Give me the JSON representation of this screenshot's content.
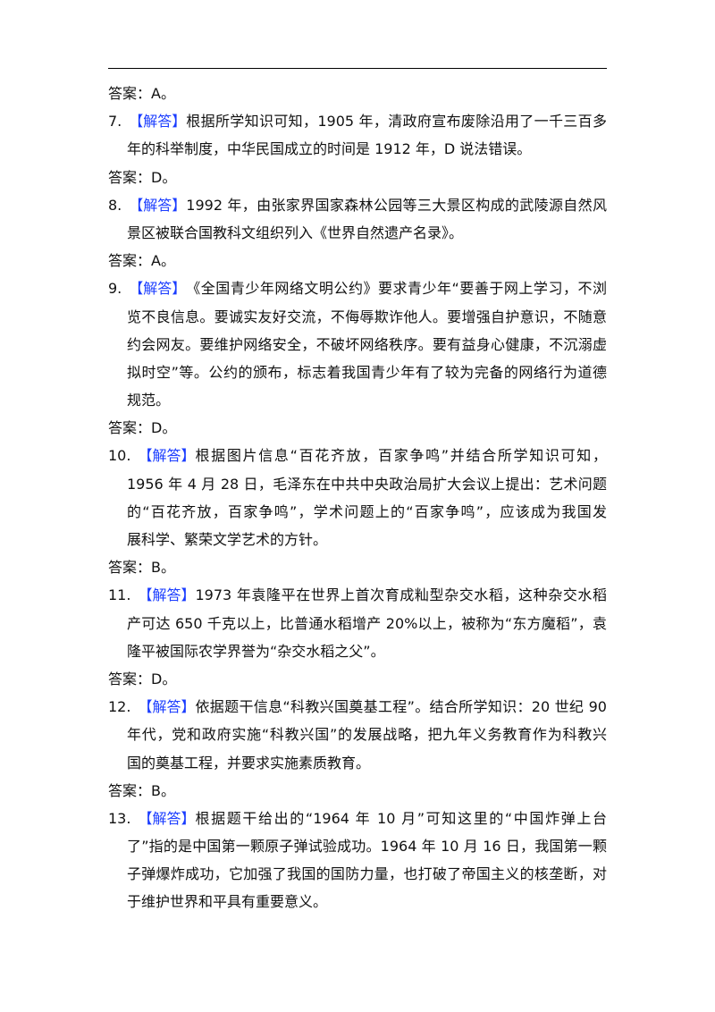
{
  "doc": {
    "first_answer": "答案：A。",
    "solution_label": "【解答】",
    "items": [
      {
        "num": "7.",
        "lines": [
          "根据所学知识可知，1905 年，清政府宣布废除沿用了一千三百多",
          "年的科举制度，中华民国成立的时间是 1912 年，D 说法错误。"
        ],
        "answer": "答案：D。"
      },
      {
        "num": "8.",
        "lines": [
          "1992 年，由张家界国家森林公园等三大景区构成的武陵源自然风",
          "景区被联合国教科文组织列入《世界自然遗产名录》。"
        ],
        "answer": "答案：A。"
      },
      {
        "num": "9.",
        "lines": [
          "《全国青少年网络文明公约》要求青少年“要善于网上学习，不浏",
          "览不良信息。要诚实友好交流，不侮辱欺诈他人。要增强自护意识，不随意",
          "约会网友。要维护网络安全，不破坏网络秩序。要有益身心健康，不沉溺虚",
          "拟时空”等。公约的颁布，标志着我国青少年有了较为完备的网络行为道德",
          "规范。"
        ],
        "answer": "答案：D。"
      },
      {
        "num": "10.",
        "lines": [
          "根据图片信息“百花齐放，百家争鸣”并结合所学知识可知，",
          "1956 年 4 月 28 日，毛泽东在中共中央政治局扩大会议上提出：艺术问题上",
          "的“百花齐放，百家争鸣”，学术问题上的“百家争鸣”，应该成为我国发",
          "展科学、繁荣文学艺术的方针。"
        ],
        "answer": "答案：B。"
      },
      {
        "num": "11.",
        "lines": [
          "1973 年袁隆平在世界上首次育成籼型杂交水稻，这种杂交水稻亩",
          "产可达 650 千克以上，比普通水稻增产 20%以上，被称为“东方魔稻”，袁",
          "隆平被国际农学界誉为“杂交水稻之父”。"
        ],
        "answer": "答案：D。"
      },
      {
        "num": "12.",
        "lines": [
          "依据题干信息“科教兴国奠基工程”。结合所学知识：20 世纪 90",
          "年代，党和政府实施“科教兴国”的发展战略，把九年义务教育作为科教兴",
          "国的奠基工程，并要求实施素质教育。"
        ],
        "answer": "答案：B。"
      },
      {
        "num": "13.",
        "lines": [
          "根据题干给出的“1964 年 10 月”可知这里的“中国炸弹上台",
          "了”指的是中国第一颗原子弹试验成功。1964 年 10 月 16 日，我国第一颗原",
          "子弹爆炸成功，它加强了我国的国防力量，也打破了帝国主义的核垄断，对",
          "于维护世界和平具有重要意义。"
        ],
        "answer": ""
      }
    ]
  },
  "colors": {
    "label": "#1a3cff",
    "text": "#111111"
  }
}
